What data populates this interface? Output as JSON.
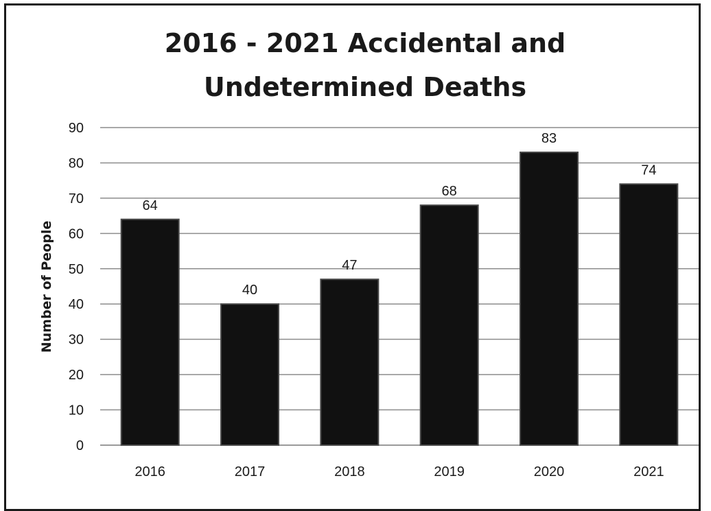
{
  "chart_data": {
    "type": "bar",
    "title_lines": [
      "2016 - 2021 Accidental and",
      "Undetermined Deaths"
    ],
    "xlabel": "",
    "ylabel": "Number of People",
    "categories": [
      "2016",
      "2017",
      "2018",
      "2019",
      "2020",
      "2021"
    ],
    "values": [
      64,
      40,
      47,
      68,
      83,
      74
    ],
    "data_labels": [
      "64",
      "40",
      "47",
      "68",
      "83",
      "74"
    ],
    "ylim": [
      0,
      90
    ],
    "yticks": [
      "0",
      "10",
      "20",
      "30",
      "40",
      "50",
      "60",
      "70",
      "80",
      "90"
    ],
    "grid": true,
    "legend": "none",
    "bar_color": "#111111",
    "grid_color": "#8c8c8c"
  }
}
